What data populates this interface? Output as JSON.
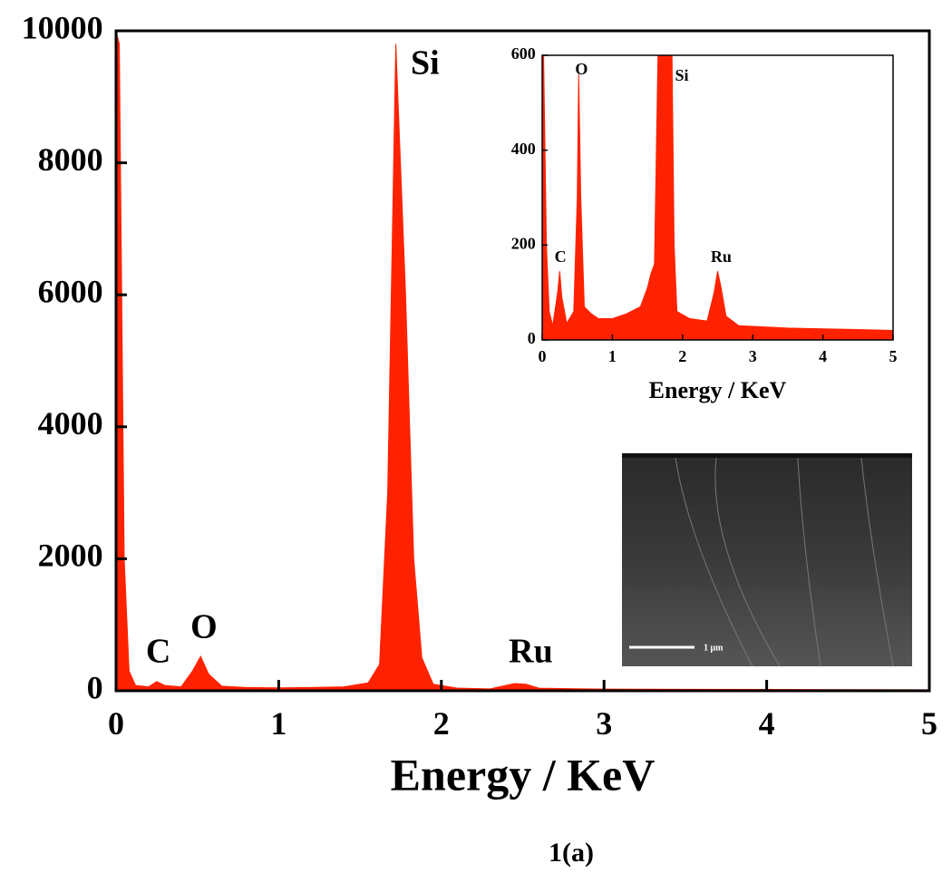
{
  "chart_data": [
    {
      "type": "area",
      "color": "#ff2200",
      "xlabel": "Energy / KeV",
      "x": [
        0,
        0.02,
        0.05,
        0.08,
        0.12,
        0.2,
        0.25,
        0.3,
        0.4,
        0.47,
        0.52,
        0.57,
        0.65,
        0.8,
        1.0,
        1.2,
        1.4,
        1.55,
        1.62,
        1.67,
        1.72,
        1.78,
        1.83,
        1.88,
        1.95,
        2.1,
        2.3,
        2.45,
        2.52,
        2.6,
        3.0,
        4.0,
        5.0
      ],
      "values": [
        10000,
        9800,
        2000,
        300,
        80,
        60,
        140,
        80,
        60,
        300,
        520,
        250,
        70,
        50,
        45,
        50,
        60,
        120,
        400,
        3000,
        9800,
        6000,
        2000,
        500,
        100,
        40,
        30,
        110,
        100,
        40,
        25,
        20,
        15
      ],
      "xlim": [
        0,
        5
      ],
      "xticks": [
        0,
        1,
        2,
        3,
        4,
        5
      ],
      "ylim": [
        0,
        10000
      ],
      "yticks": [
        0,
        2000,
        4000,
        6000,
        8000,
        10000
      ],
      "annotations": [
        {
          "text": "C",
          "x": 0.26,
          "y": 550
        },
        {
          "text": "O",
          "x": 0.54,
          "y": 920
        },
        {
          "text": "Si",
          "x": 1.9,
          "y": 9470
        },
        {
          "text": "Ru",
          "x": 2.55,
          "y": 550
        }
      ]
    },
    {
      "type": "area",
      "color": "#ff2200",
      "xlabel": "Energy / KeV",
      "x": [
        0,
        0.02,
        0.06,
        0.1,
        0.15,
        0.22,
        0.25,
        0.28,
        0.35,
        0.45,
        0.5,
        0.52,
        0.55,
        0.6,
        0.7,
        0.8,
        1.0,
        1.2,
        1.4,
        1.5,
        1.55,
        1.6,
        1.65,
        1.85,
        1.88,
        1.92,
        2.1,
        2.35,
        2.45,
        2.5,
        2.55,
        2.62,
        2.8,
        3.5,
        4.5,
        5.0
      ],
      "values": [
        600,
        600,
        200,
        60,
        30,
        100,
        145,
        90,
        35,
        60,
        300,
        560,
        300,
        70,
        55,
        45,
        45,
        55,
        70,
        110,
        140,
        160,
        600,
        600,
        200,
        60,
        45,
        40,
        100,
        145,
        110,
        50,
        30,
        25,
        22,
        20
      ],
      "xlim": [
        0,
        5
      ],
      "xticks": [
        0,
        1,
        2,
        3,
        4,
        5
      ],
      "ylim": [
        0,
        600
      ],
      "yticks": [
        0,
        200,
        400,
        600
      ],
      "annotations": [
        {
          "text": "C",
          "x": 0.26,
          "y": 172
        },
        {
          "text": "O",
          "x": 0.56,
          "y": 568
        },
        {
          "text": "Si",
          "x": 1.99,
          "y": 554
        },
        {
          "text": "Ru",
          "x": 2.55,
          "y": 172
        }
      ]
    }
  ],
  "sem_image": {
    "scale_label": "1 μm"
  },
  "caption": "1(a)"
}
